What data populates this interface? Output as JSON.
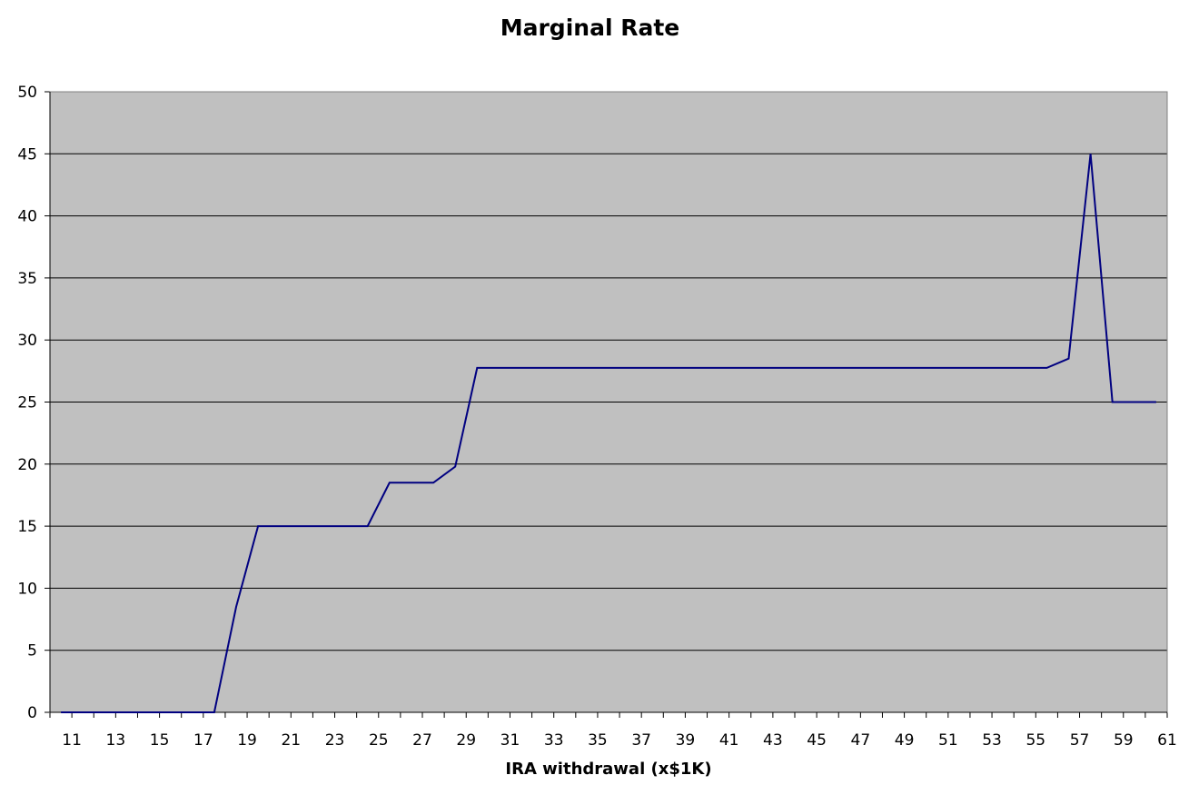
{
  "chart_data": {
    "type": "line",
    "title": "Marginal Rate",
    "xlabel": "IRA withdrawal (x$1K)",
    "ylabel": "",
    "ylim": [
      0,
      50
    ],
    "yticks": [
      0,
      5,
      10,
      15,
      20,
      25,
      30,
      35,
      40,
      45,
      50
    ],
    "x_tick_labels": [
      "11",
      "13",
      "15",
      "17",
      "19",
      "21",
      "23",
      "25",
      "27",
      "29",
      "31",
      "33",
      "35",
      "37",
      "39",
      "41",
      "43",
      "45",
      "47",
      "49",
      "51",
      "53",
      "55",
      "57",
      "59",
      "61"
    ],
    "grid": "horizontal",
    "legend": "none",
    "plot_background": "#c0c0c0",
    "line_color": "#000080",
    "x": [
      10.5,
      11.5,
      12.5,
      13.5,
      14.5,
      15.5,
      16.5,
      17.5,
      18.5,
      19.5,
      20.5,
      21.5,
      22.5,
      23.5,
      24.5,
      25.5,
      26.5,
      27.5,
      28.5,
      29.5,
      30.5,
      31.5,
      32.5,
      33.5,
      34.5,
      35.5,
      36.5,
      37.5,
      38.5,
      39.5,
      40.5,
      41.5,
      42.5,
      43.5,
      44.5,
      45.5,
      46.5,
      47.5,
      48.5,
      49.5,
      50.5,
      51.5,
      52.5,
      53.5,
      54.5,
      55.5,
      56.5,
      57.5,
      58.5,
      59.5,
      60.5
    ],
    "series": [
      {
        "values": [
          0,
          0,
          0,
          0,
          0,
          0,
          0,
          0,
          8.5,
          15,
          15,
          15,
          15,
          15,
          15,
          18.5,
          18.5,
          18.5,
          19.8,
          27.75,
          27.75,
          27.75,
          27.75,
          27.75,
          27.75,
          27.75,
          27.75,
          27.75,
          27.75,
          27.75,
          27.75,
          27.75,
          27.75,
          27.75,
          27.75,
          27.75,
          27.75,
          27.75,
          27.75,
          27.75,
          27.75,
          27.75,
          27.75,
          27.75,
          27.75,
          27.75,
          28.5,
          45,
          25,
          25,
          25
        ]
      }
    ]
  }
}
